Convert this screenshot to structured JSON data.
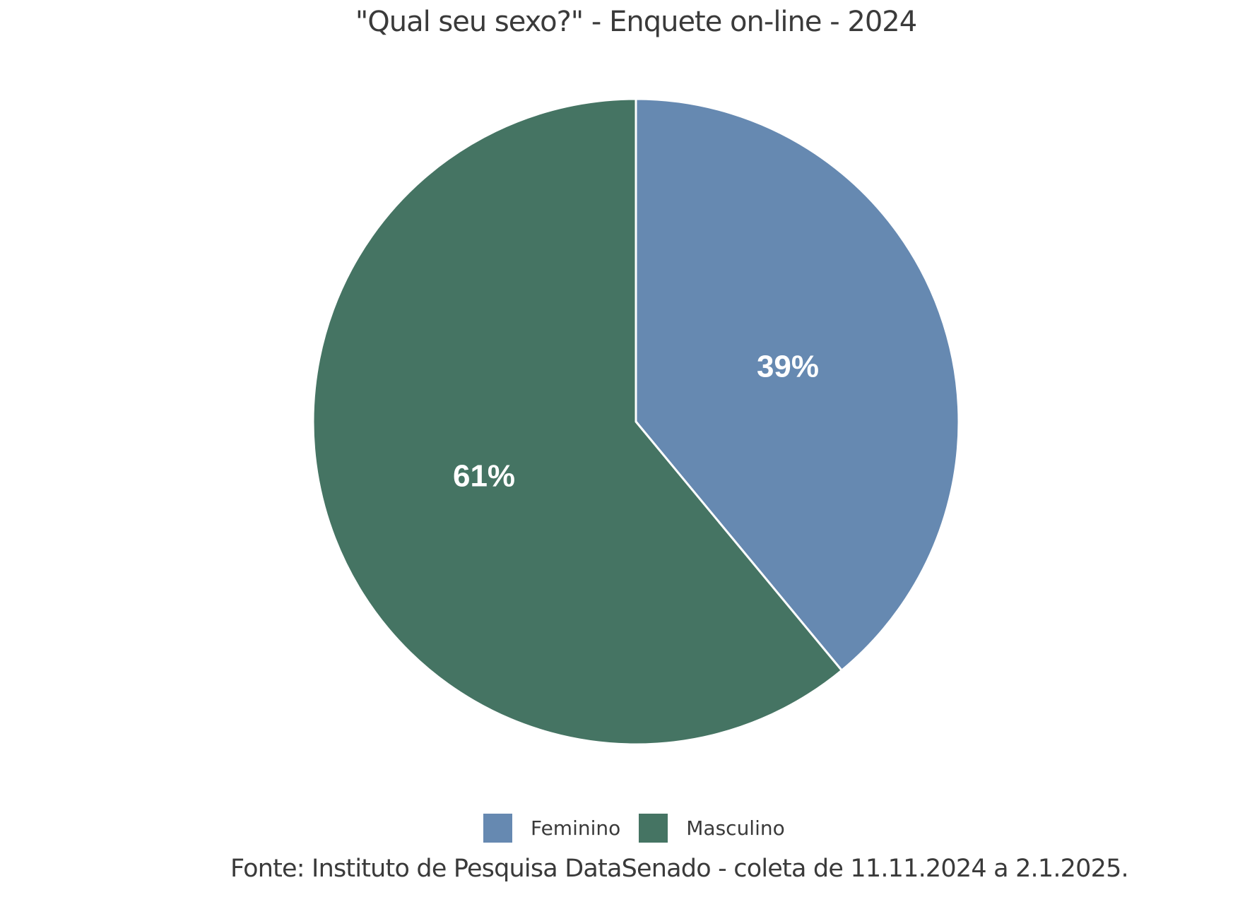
{
  "chart_data": {
    "type": "pie",
    "title": "\"Qual seu sexo?\" - Enquete on-line - 2024",
    "categories": [
      "Feminino",
      "Masculino"
    ],
    "values": [
      39,
      61
    ],
    "data_labels": [
      "39%",
      "61%"
    ],
    "colors": [
      "#6689B1",
      "#457463"
    ],
    "legend": "bottom",
    "source": "Fonte: Instituto de Pesquisa DataSenado - coleta de 11.11.2024 a 2.1.2025."
  }
}
